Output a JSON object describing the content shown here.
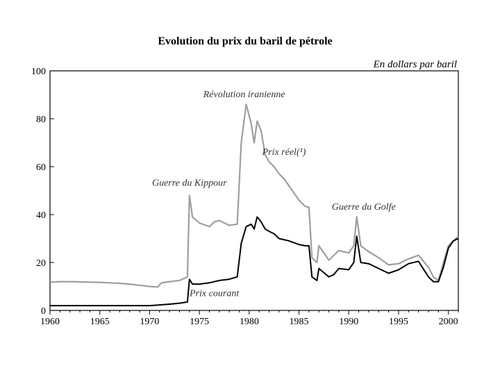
{
  "chart_data": {
    "type": "line",
    "title": "Evolution du prix du baril de pétrole",
    "unit_label": "En dollars par baril",
    "xlim": [
      1960,
      2001
    ],
    "ylim": [
      0,
      100
    ],
    "xticks": [
      1960,
      1965,
      1970,
      1975,
      1980,
      1985,
      1990,
      1995,
      2000
    ],
    "yticks": [
      0,
      20,
      40,
      60,
      80,
      100
    ],
    "grid": false,
    "series": [
      {
        "name": "Prix réel(¹)",
        "color": "#9e9e9e",
        "points": [
          [
            1960,
            11.8
          ],
          [
            1961,
            12.0
          ],
          [
            1962,
            12.0
          ],
          [
            1963,
            11.9
          ],
          [
            1964,
            11.8
          ],
          [
            1965,
            11.7
          ],
          [
            1966,
            11.5
          ],
          [
            1967,
            11.3
          ],
          [
            1968,
            11.0
          ],
          [
            1969,
            10.5
          ],
          [
            1970,
            10.0
          ],
          [
            1970.8,
            9.8
          ],
          [
            1971.2,
            11.5
          ],
          [
            1972,
            12.0
          ],
          [
            1973,
            12.5
          ],
          [
            1973.8,
            14.0
          ],
          [
            1974.0,
            48.0
          ],
          [
            1974.3,
            39.0
          ],
          [
            1975,
            36.5
          ],
          [
            1976,
            35.0
          ],
          [
            1976.5,
            37.0
          ],
          [
            1977,
            37.5
          ],
          [
            1978,
            35.5
          ],
          [
            1978.8,
            36.0
          ],
          [
            1979.2,
            70.0
          ],
          [
            1979.7,
            86.0
          ],
          [
            1980.2,
            78.0
          ],
          [
            1980.5,
            70.0
          ],
          [
            1980.8,
            79.0
          ],
          [
            1981.2,
            75.0
          ],
          [
            1981.6,
            65.0
          ],
          [
            1982,
            62.0
          ],
          [
            1982.5,
            60.0
          ],
          [
            1983,
            57.0
          ],
          [
            1983.5,
            55.0
          ],
          [
            1984,
            52.0
          ],
          [
            1984.5,
            49.0
          ],
          [
            1985,
            46.0
          ],
          [
            1985.6,
            43.5
          ],
          [
            1986.0,
            43.0
          ],
          [
            1986.3,
            22.0
          ],
          [
            1986.8,
            20.0
          ],
          [
            1987,
            27.0
          ],
          [
            1988,
            21.0
          ],
          [
            1988.5,
            23.0
          ],
          [
            1989,
            25.0
          ],
          [
            1990,
            24.0
          ],
          [
            1990.5,
            27.0
          ],
          [
            1990.8,
            39.0
          ],
          [
            1991.2,
            27.0
          ],
          [
            1992,
            24.5
          ],
          [
            1993,
            22.0
          ],
          [
            1994,
            19.0
          ],
          [
            1995,
            19.5
          ],
          [
            1996,
            21.5
          ],
          [
            1997,
            23.0
          ],
          [
            1998,
            18.0
          ],
          [
            1998.5,
            14.0
          ],
          [
            1999,
            12.5
          ],
          [
            1999.5,
            20.0
          ],
          [
            2000,
            27.0
          ],
          [
            2000.5,
            29.0
          ],
          [
            2001,
            31.0
          ]
        ]
      },
      {
        "name": "Prix courant",
        "color": "#000000",
        "points": [
          [
            1960,
            2.0
          ],
          [
            1965,
            2.0
          ],
          [
            1970,
            2.0
          ],
          [
            1971,
            2.3
          ],
          [
            1972,
            2.6
          ],
          [
            1973,
            3.0
          ],
          [
            1973.8,
            3.5
          ],
          [
            1974.0,
            13.0
          ],
          [
            1974.3,
            11.0
          ],
          [
            1975,
            11.0
          ],
          [
            1976,
            11.5
          ],
          [
            1977,
            12.5
          ],
          [
            1978,
            13.0
          ],
          [
            1978.8,
            14.0
          ],
          [
            1979.2,
            28.0
          ],
          [
            1979.7,
            35.0
          ],
          [
            1980.2,
            36.0
          ],
          [
            1980.5,
            34.0
          ],
          [
            1980.8,
            39.0
          ],
          [
            1981.2,
            37.0
          ],
          [
            1981.6,
            34.0
          ],
          [
            1982,
            33.0
          ],
          [
            1982.5,
            32.0
          ],
          [
            1983,
            30.0
          ],
          [
            1984,
            29.0
          ],
          [
            1985,
            27.5
          ],
          [
            1985.6,
            27.0
          ],
          [
            1986.0,
            27.0
          ],
          [
            1986.3,
            14.0
          ],
          [
            1986.8,
            12.5
          ],
          [
            1987,
            17.5
          ],
          [
            1988,
            14.0
          ],
          [
            1988.5,
            15.0
          ],
          [
            1989,
            17.5
          ],
          [
            1990,
            17.0
          ],
          [
            1990.5,
            20.0
          ],
          [
            1990.8,
            31.0
          ],
          [
            1991.2,
            20.0
          ],
          [
            1992,
            19.5
          ],
          [
            1993,
            17.5
          ],
          [
            1994,
            15.5
          ],
          [
            1995,
            17.0
          ],
          [
            1996,
            19.5
          ],
          [
            1997,
            20.5
          ],
          [
            1998,
            14.0
          ],
          [
            1998.5,
            12.0
          ],
          [
            1999,
            12.0
          ],
          [
            1999.5,
            18.0
          ],
          [
            2000,
            26.0
          ],
          [
            2000.5,
            29.0
          ],
          [
            2001,
            30.0
          ]
        ]
      }
    ],
    "annotations": [
      {
        "text": "Révolution iranienne",
        "x": 1979.5,
        "y": 89
      },
      {
        "text": "Prix réel(¹)",
        "x": 1983.5,
        "y": 65
      },
      {
        "text": "Guerre du Kippour",
        "x": 1974.0,
        "y": 52
      },
      {
        "text": "Guerre du Golfe",
        "x": 1991.5,
        "y": 42
      },
      {
        "text": "Prix courant",
        "x": 1976.5,
        "y": 6
      }
    ]
  }
}
